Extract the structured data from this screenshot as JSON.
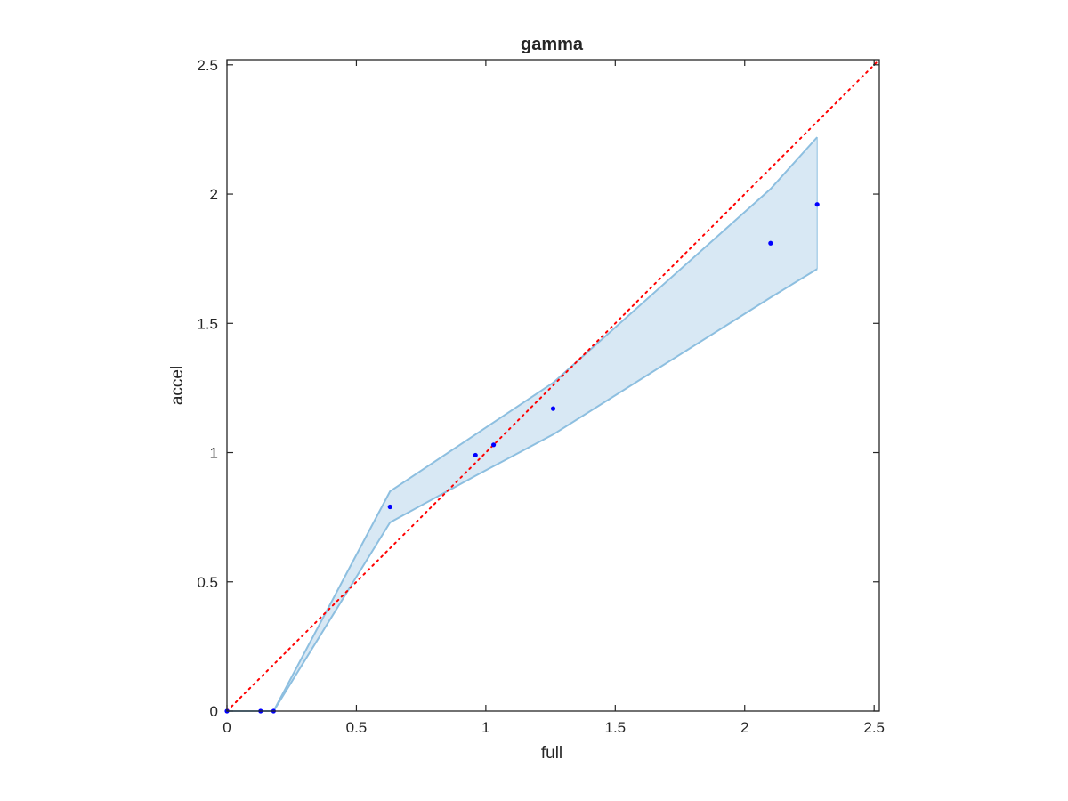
{
  "chart_data": {
    "type": "scatter",
    "title": "gamma",
    "xlabel": "full",
    "ylabel": "accel",
    "xlim": [
      0,
      2.52
    ],
    "ylim": [
      0,
      2.52
    ],
    "xticks": [
      0,
      0.5,
      1,
      1.5,
      2,
      2.5
    ],
    "yticks": [
      0,
      0.5,
      1,
      1.5,
      2,
      2.5
    ],
    "xtick_labels": [
      "0",
      "0.5",
      "1",
      "1.5",
      "2",
      "2.5"
    ],
    "ytick_labels": [
      "0",
      "0.5",
      "1",
      "1.5",
      "2",
      "2.5"
    ],
    "grid": false,
    "colors": {
      "points": "#0000ff",
      "band_fill": "#d8e8f4",
      "band_edge": "#8dbfe0",
      "reference_line": "#ff0000",
      "axes": "#262626"
    },
    "points": {
      "x": [
        0,
        0.13,
        0.18,
        0.63,
        0.96,
        1.03,
        1.26,
        2.1,
        2.28
      ],
      "y": [
        0,
        0,
        0,
        0.79,
        0.99,
        1.03,
        1.17,
        1.81,
        1.96
      ]
    },
    "band": {
      "x": [
        0,
        0.18,
        0.63,
        0.96,
        1.26,
        2.1,
        2.28
      ],
      "upper": [
        0,
        0,
        0.85,
        1.07,
        1.27,
        2.02,
        2.22
      ],
      "lower": [
        0,
        0,
        0.73,
        0.91,
        1.07,
        1.6,
        1.71
      ]
    },
    "reference_line": {
      "style": "dotted",
      "x": [
        0,
        2.52
      ],
      "y": [
        0,
        2.52
      ]
    }
  }
}
